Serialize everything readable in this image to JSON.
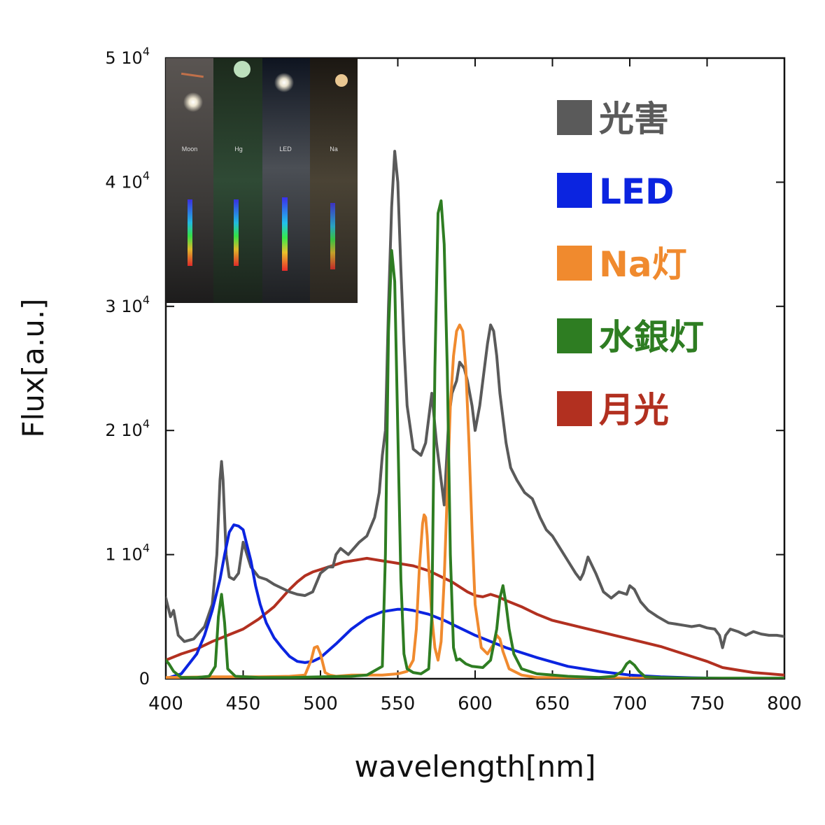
{
  "chart_data": {
    "type": "line",
    "xlabel": "wavelength[nm]",
    "ylabel": "Flux[a.u.]",
    "xlim": [
      400,
      800
    ],
    "ylim": [
      0,
      50000
    ],
    "xticks": [
      400,
      450,
      500,
      550,
      600,
      650,
      700,
      750,
      800
    ],
    "xtick_labels": [
      "400",
      "450",
      "500",
      "550",
      "600",
      "650",
      "700",
      "750",
      "800"
    ],
    "yticks": [
      {
        "value": 0,
        "mantissa": "0",
        "exp": ""
      },
      {
        "value": 10000,
        "mantissa": "1 10",
        "exp": "4"
      },
      {
        "value": 20000,
        "mantissa": "2 10",
        "exp": "4"
      },
      {
        "value": 30000,
        "mantissa": "3 10",
        "exp": "4"
      },
      {
        "value": 40000,
        "mantissa": "4 10",
        "exp": "4"
      },
      {
        "value": 50000,
        "mantissa": "5 10",
        "exp": "4"
      }
    ],
    "grid": false,
    "legend_position": "top-right",
    "series": [
      {
        "name": "光害",
        "color": "#5a5a5a",
        "x": [
          400,
          403,
          405,
          408,
          412,
          418,
          425,
          430,
          433,
          435,
          436,
          437,
          439,
          441,
          444,
          447,
          450,
          455,
          460,
          465,
          470,
          475,
          480,
          485,
          490,
          495,
          500,
          505,
          508,
          510,
          513,
          518,
          525,
          530,
          535,
          538,
          540,
          542,
          544,
          546,
          548,
          550,
          552,
          554,
          556,
          560,
          565,
          568,
          570,
          572,
          575,
          578,
          580,
          583,
          585,
          588,
          590,
          593,
          595,
          598,
          600,
          603,
          605,
          608,
          610,
          612,
          614,
          616,
          618,
          620,
          623,
          627,
          632,
          637,
          642,
          646,
          650,
          655,
          660,
          665,
          668,
          670,
          673,
          678,
          683,
          688,
          693,
          698,
          700,
          703,
          707,
          712,
          718,
          725,
          730,
          735,
          740,
          745,
          750,
          755,
          758,
          760,
          762,
          765,
          770,
          775,
          780,
          785,
          790,
          795,
          800
        ],
        "y": [
          6500,
          5000,
          5500,
          3500,
          3000,
          3200,
          4200,
          6000,
          10000,
          16000,
          17500,
          16000,
          10000,
          8200,
          8000,
          8500,
          11000,
          9000,
          8200,
          8000,
          7600,
          7300,
          7000,
          6800,
          6700,
          7000,
          8500,
          9000,
          9000,
          10000,
          10500,
          10000,
          11000,
          11500,
          13000,
          15000,
          18000,
          20000,
          30000,
          38000,
          42500,
          40000,
          33000,
          27000,
          22000,
          18500,
          18000,
          19000,
          21000,
          23000,
          19000,
          16000,
          14000,
          21000,
          23000,
          24000,
          25500,
          25000,
          24000,
          22000,
          20000,
          22000,
          24000,
          27000,
          28500,
          28000,
          26000,
          23000,
          21000,
          19000,
          17000,
          16000,
          15000,
          14500,
          13000,
          12000,
          11500,
          10500,
          9500,
          8500,
          8000,
          8500,
          9800,
          8500,
          7000,
          6500,
          7000,
          6800,
          7500,
          7200,
          6200,
          5500,
          5000,
          4500,
          4400,
          4300,
          4200,
          4300,
          4100,
          4000,
          3500,
          2500,
          3500,
          4000,
          3800,
          3500,
          3800,
          3600,
          3500,
          3500,
          3400
        ]
      },
      {
        "name": "LED",
        "color": "#0b24e0",
        "x": [
          400,
          410,
          420,
          425,
          430,
          435,
          438,
          441,
          444,
          447,
          450,
          452,
          455,
          458,
          461,
          465,
          470,
          475,
          480,
          485,
          490,
          495,
          500,
          510,
          520,
          530,
          540,
          550,
          555,
          560,
          570,
          580,
          590,
          600,
          620,
          640,
          660,
          680,
          700,
          720,
          740,
          760,
          780,
          800
        ],
        "y": [
          0,
          400,
          2000,
          3500,
          5500,
          8000,
          10000,
          11800,
          12400,
          12300,
          12000,
          11000,
          9500,
          7500,
          6000,
          4500,
          3300,
          2500,
          1800,
          1400,
          1300,
          1400,
          1700,
          2800,
          4000,
          4900,
          5400,
          5600,
          5600,
          5500,
          5200,
          4700,
          4100,
          3500,
          2500,
          1700,
          1000,
          600,
          300,
          150,
          80,
          30,
          10,
          0
        ]
      },
      {
        "name": "Na灯",
        "color": "#f08a2e",
        "x": [
          400,
          430,
          460,
          480,
          490,
          494,
          496,
          498,
          500,
          503,
          506,
          510,
          520,
          530,
          540,
          550,
          556,
          560,
          562,
          564,
          566,
          567,
          568,
          569,
          570,
          572,
          574,
          576,
          578,
          580,
          582,
          584,
          586,
          588,
          590,
          592,
          594,
          596,
          598,
          600,
          604,
          608,
          612,
          614,
          616,
          618,
          622,
          630,
          640,
          660,
          680,
          700,
          720,
          740,
          760,
          780,
          800
        ],
        "y": [
          100,
          150,
          150,
          200,
          300,
          1500,
          2500,
          2600,
          2000,
          500,
          300,
          200,
          300,
          300,
          300,
          400,
          600,
          1500,
          4000,
          9000,
          12500,
          13200,
          13000,
          11500,
          9000,
          5000,
          2500,
          1500,
          3000,
          8000,
          15000,
          22000,
          26000,
          28000,
          28500,
          28000,
          25000,
          19000,
          12000,
          6000,
          2500,
          2000,
          2800,
          3500,
          3200,
          2200,
          800,
          300,
          100,
          100,
          100,
          50,
          50,
          0,
          0,
          0,
          0
        ]
      },
      {
        "name": "水銀灯",
        "color": "#2e7d22",
        "x": [
          400,
          402,
          405,
          410,
          420,
          428,
          432,
          434,
          436,
          438,
          440,
          445,
          460,
          480,
          500,
          520,
          530,
          540,
          542,
          544,
          546,
          548,
          550,
          552,
          554,
          556,
          560,
          565,
          570,
          572,
          574,
          576,
          578,
          580,
          582,
          584,
          586,
          588,
          590,
          594,
          598,
          605,
          610,
          614,
          616,
          618,
          620,
          622,
          625,
          630,
          640,
          660,
          680,
          690,
          695,
          698,
          700,
          703,
          706,
          710,
          720,
          740,
          760,
          780,
          800
        ],
        "y": [
          1500,
          1200,
          600,
          100,
          100,
          200,
          1000,
          5000,
          6800,
          4500,
          800,
          200,
          100,
          100,
          150,
          200,
          300,
          1000,
          10000,
          28000,
          34500,
          32000,
          20000,
          8000,
          2000,
          800,
          500,
          400,
          800,
          5000,
          25000,
          37500,
          38500,
          35000,
          25000,
          10000,
          2500,
          1500,
          1600,
          1200,
          1000,
          900,
          1500,
          4000,
          6500,
          7500,
          6000,
          4000,
          2000,
          800,
          400,
          200,
          100,
          200,
          600,
          1200,
          1400,
          1100,
          600,
          150,
          100,
          50,
          50,
          50,
          50
        ]
      },
      {
        "name": "月光",
        "color": "#b23020",
        "x": [
          400,
          410,
          420,
          430,
          440,
          450,
          460,
          470,
          475,
          480,
          485,
          490,
          495,
          500,
          505,
          510,
          515,
          520,
          525,
          530,
          535,
          540,
          545,
          550,
          555,
          560,
          565,
          570,
          575,
          580,
          585,
          590,
          595,
          600,
          605,
          610,
          615,
          620,
          630,
          640,
          650,
          660,
          670,
          680,
          690,
          700,
          710,
          720,
          730,
          740,
          750,
          760,
          770,
          780,
          790,
          800
        ],
        "y": [
          1500,
          2000,
          2400,
          3000,
          3500,
          4000,
          4800,
          5800,
          6500,
          7200,
          7800,
          8300,
          8600,
          8800,
          9000,
          9200,
          9400,
          9500,
          9600,
          9700,
          9600,
          9500,
          9400,
          9300,
          9200,
          9100,
          8900,
          8700,
          8400,
          8100,
          7800,
          7400,
          7000,
          6700,
          6600,
          6800,
          6600,
          6300,
          5800,
          5200,
          4700,
          4400,
          4100,
          3800,
          3500,
          3200,
          2900,
          2600,
          2200,
          1800,
          1400,
          900,
          700,
          500,
          400,
          300
        ]
      }
    ]
  },
  "inset": {
    "panels": [
      {
        "label": "Moon"
      },
      {
        "label": "Hg"
      },
      {
        "label": "LED"
      },
      {
        "label": "Na"
      }
    ]
  }
}
